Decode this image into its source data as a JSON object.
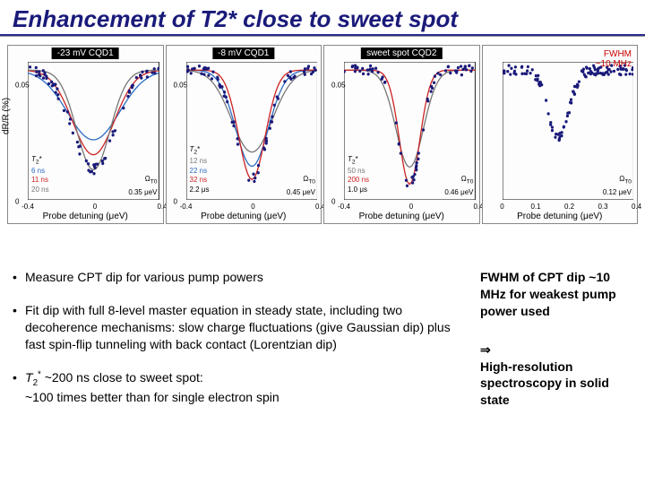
{
  "title": "Enhancement of T2* close to sweet spot",
  "y_axis_label": "dR/R (%)",
  "x_axis_label": "Probe detuning (μeV)",
  "panels": [
    {
      "label": "-23 mV CQD1",
      "xlim": [
        -0.4,
        0.4
      ],
      "xticks": [
        -0.4,
        0,
        0.4
      ],
      "ylim": [
        0,
        0.06
      ],
      "yticks": [
        0,
        0.05
      ],
      "legend_title": "T2*",
      "legend_items": [
        {
          "text": "6 ns",
          "color": "#2a6bc4"
        },
        {
          "text": "11 ns",
          "color": "#cc2222"
        },
        {
          "text": "20 ns",
          "color": "#777777"
        }
      ],
      "omega_label": "ΩT0",
      "omega_value": "0.35 μeV",
      "dip_depth": 0.82,
      "dip_width": 0.4,
      "curves": [
        {
          "color": "#2a6bc4",
          "width_mul": 1.25,
          "depth_mul": 0.7
        },
        {
          "color": "#cc2222",
          "width_mul": 1.0,
          "depth_mul": 0.85
        },
        {
          "color": "#777777",
          "width_mul": 0.8,
          "depth_mul": 1.0
        }
      ],
      "scatter_color": "#1a1a7a",
      "show_scatter": true
    },
    {
      "label": "-8 mV CQD1",
      "xlim": [
        -0.4,
        0.4
      ],
      "xticks": [
        -0.4,
        0,
        0.4
      ],
      "ylim": [
        0,
        0.06
      ],
      "yticks": [
        0,
        0.05
      ],
      "legend_title": "T2*",
      "legend_items": [
        {
          "text": "12 ns",
          "color": "#777777"
        },
        {
          "text": "22 ns",
          "color": "#2a6bc4"
        },
        {
          "text": "32 ns",
          "color": "#cc2222"
        },
        {
          "text": "2.2 μs",
          "color": "#000000"
        }
      ],
      "omega_label": "ΩT0",
      "omega_value": "0.45 μeV",
      "dip_depth": 0.9,
      "dip_width": 0.3,
      "curves": [
        {
          "color": "#777777",
          "width_mul": 1.3,
          "depth_mul": 0.75
        },
        {
          "color": "#2a6bc4",
          "width_mul": 1.05,
          "depth_mul": 0.88
        },
        {
          "color": "#cc2222",
          "width_mul": 0.85,
          "depth_mul": 1.0
        }
      ],
      "scatter_color": "#1a1a7a",
      "show_scatter": true
    },
    {
      "label": "sweet spot CQD2",
      "xlim": [
        -0.4,
        0.4
      ],
      "xticks": [
        -0.4,
        0,
        0.4
      ],
      "ylim": [
        0,
        0.06
      ],
      "yticks": [
        0,
        0.05
      ],
      "legend_title": "T2*",
      "legend_items": [
        {
          "text": "50 ns",
          "color": "#777777"
        },
        {
          "text": "200 ns",
          "color": "#cc2222"
        },
        {
          "text": "1.0 μs",
          "color": "#000000"
        }
      ],
      "omega_label": "ΩT0",
      "omega_value": "0.46 μeV",
      "dip_depth": 0.94,
      "dip_width": 0.22,
      "curves": [
        {
          "color": "#777777",
          "width_mul": 1.2,
          "depth_mul": 0.85
        },
        {
          "color": "#cc2222",
          "width_mul": 0.9,
          "depth_mul": 1.0
        }
      ],
      "scatter_color": "#1a1a7a",
      "show_scatter": true
    },
    {
      "label": "",
      "xlim": [
        0,
        0.4
      ],
      "xticks": [
        0,
        0.1,
        0.2,
        0.3,
        0.4
      ],
      "ylim": [
        0,
        0.06
      ],
      "yticks": [],
      "fwhm_text_1": "FWHM",
      "fwhm_text_2": "~10 MHz",
      "omega_label": "ΩT0",
      "omega_value": "0.12 μeV",
      "dip_depth": 0.55,
      "dip_width": 0.1,
      "dip_center": 0.17,
      "scatter_color": "#1a1a7a",
      "show_scatter": true,
      "scatter_only": true
    }
  ],
  "bullets": [
    "Measure CPT dip for various pump powers",
    "Fit dip with full 8-level master equation in steady state, including two decoherence mechanisms: slow charge fluctuations (give Gaussian dip) plus fast spin-flip tunneling with back contact (Lorentzian dip)",
    "T2* ~200 ns close to sweet spot: ~100 times better than for single electron spin"
  ],
  "side_note": {
    "block1": "FWHM of CPT dip ~10 MHz for weakest pump power used",
    "arrow": "⇒",
    "block2": "High-resolution spectroscopy in solid state"
  },
  "colors": {
    "title": "#1a1a7a",
    "panel_label_bg": "#000000",
    "panel_label_fg": "#ffffff"
  }
}
